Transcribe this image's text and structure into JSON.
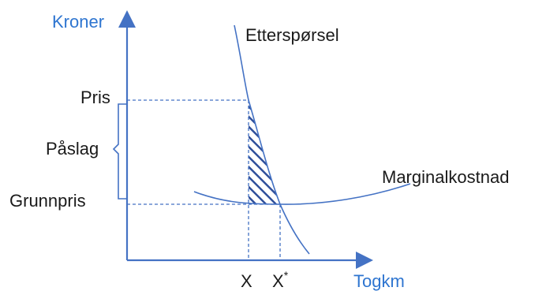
{
  "colors": {
    "axis": "#4472c4",
    "axis_label": "#2e75d0",
    "curve": "#4472c4",
    "hatch": "#2f4f9a",
    "text": "#1a1a1a"
  },
  "axes": {
    "y_label": "Kroner",
    "x_label": "Togkm"
  },
  "curves": {
    "demand_label": "Etterspørsel",
    "marginal_cost_label": "Marginalkostnad"
  },
  "price_levels": {
    "price_label": "Pris",
    "markup_label": "Påslag",
    "base_price_label": "Grunnpris"
  },
  "quantities": {
    "x_label": "X",
    "x_star_base": "X",
    "x_star_superscript": "*"
  }
}
